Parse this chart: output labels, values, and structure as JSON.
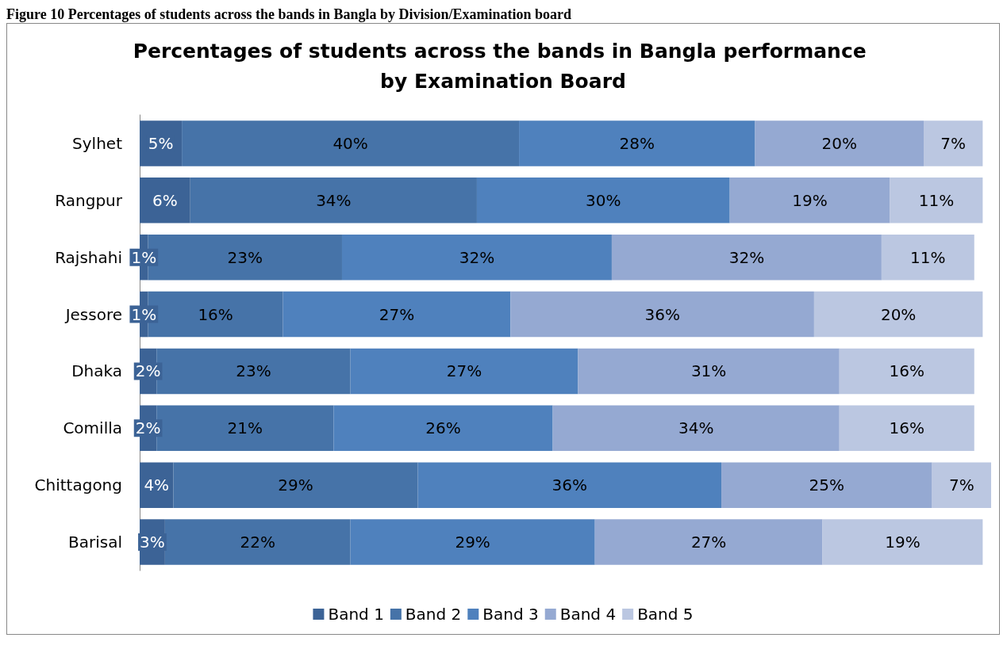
{
  "chart_data": {
    "type": "bar",
    "orientation": "horizontal",
    "stacked": true,
    "title": "Percentages of students across the bands in Bangla performance by Examination Board",
    "annotations": [
      "Figure 10 Percentages of students across the bands in Bangla by Division/Examination board"
    ],
    "categories": [
      "Sylhet",
      "Rangpur",
      "Rajshahi",
      "Jessore",
      "Dhaka",
      "Comilla",
      "Chittagong",
      "Barisal"
    ],
    "series": [
      {
        "name": "Band 1",
        "color": "#3c6396",
        "values": [
          5,
          6,
          1,
          1,
          2,
          2,
          4,
          3
        ],
        "value_labels": [
          "5%",
          "6%",
          "1%",
          "1%",
          "2%",
          "2%",
          "4%",
          "3%"
        ]
      },
      {
        "name": "Band 2",
        "color": "#4673a8",
        "values": [
          40,
          34,
          23,
          16,
          23,
          21,
          29,
          22
        ],
        "value_labels": [
          "40%",
          "34%",
          "23%",
          "16%",
          "23%",
          "21%",
          "29%",
          "22%"
        ]
      },
      {
        "name": "Band 3",
        "color": "#4f81bd",
        "values": [
          28,
          30,
          32,
          27,
          27,
          26,
          36,
          29
        ],
        "value_labels": [
          "28%",
          "30%",
          "32%",
          "27%",
          "27%",
          "26%",
          "36%",
          "29%"
        ]
      },
      {
        "name": "Band 4",
        "color": "#95a9d2",
        "values": [
          20,
          19,
          32,
          36,
          31,
          34,
          25,
          27
        ],
        "value_labels": [
          "20%",
          "19%",
          "32%",
          "36%",
          "31%",
          "34%",
          "25%",
          "27%"
        ]
      },
      {
        "name": "Band 5",
        "color": "#bbc7e1",
        "values": [
          7,
          11,
          11,
          20,
          16,
          16,
          7,
          19
        ],
        "value_labels": [
          "7%",
          "11%",
          "11%",
          "20%",
          "16%",
          "16%",
          "7%",
          "19%"
        ]
      }
    ],
    "legend": "bottom",
    "grid": false
  }
}
